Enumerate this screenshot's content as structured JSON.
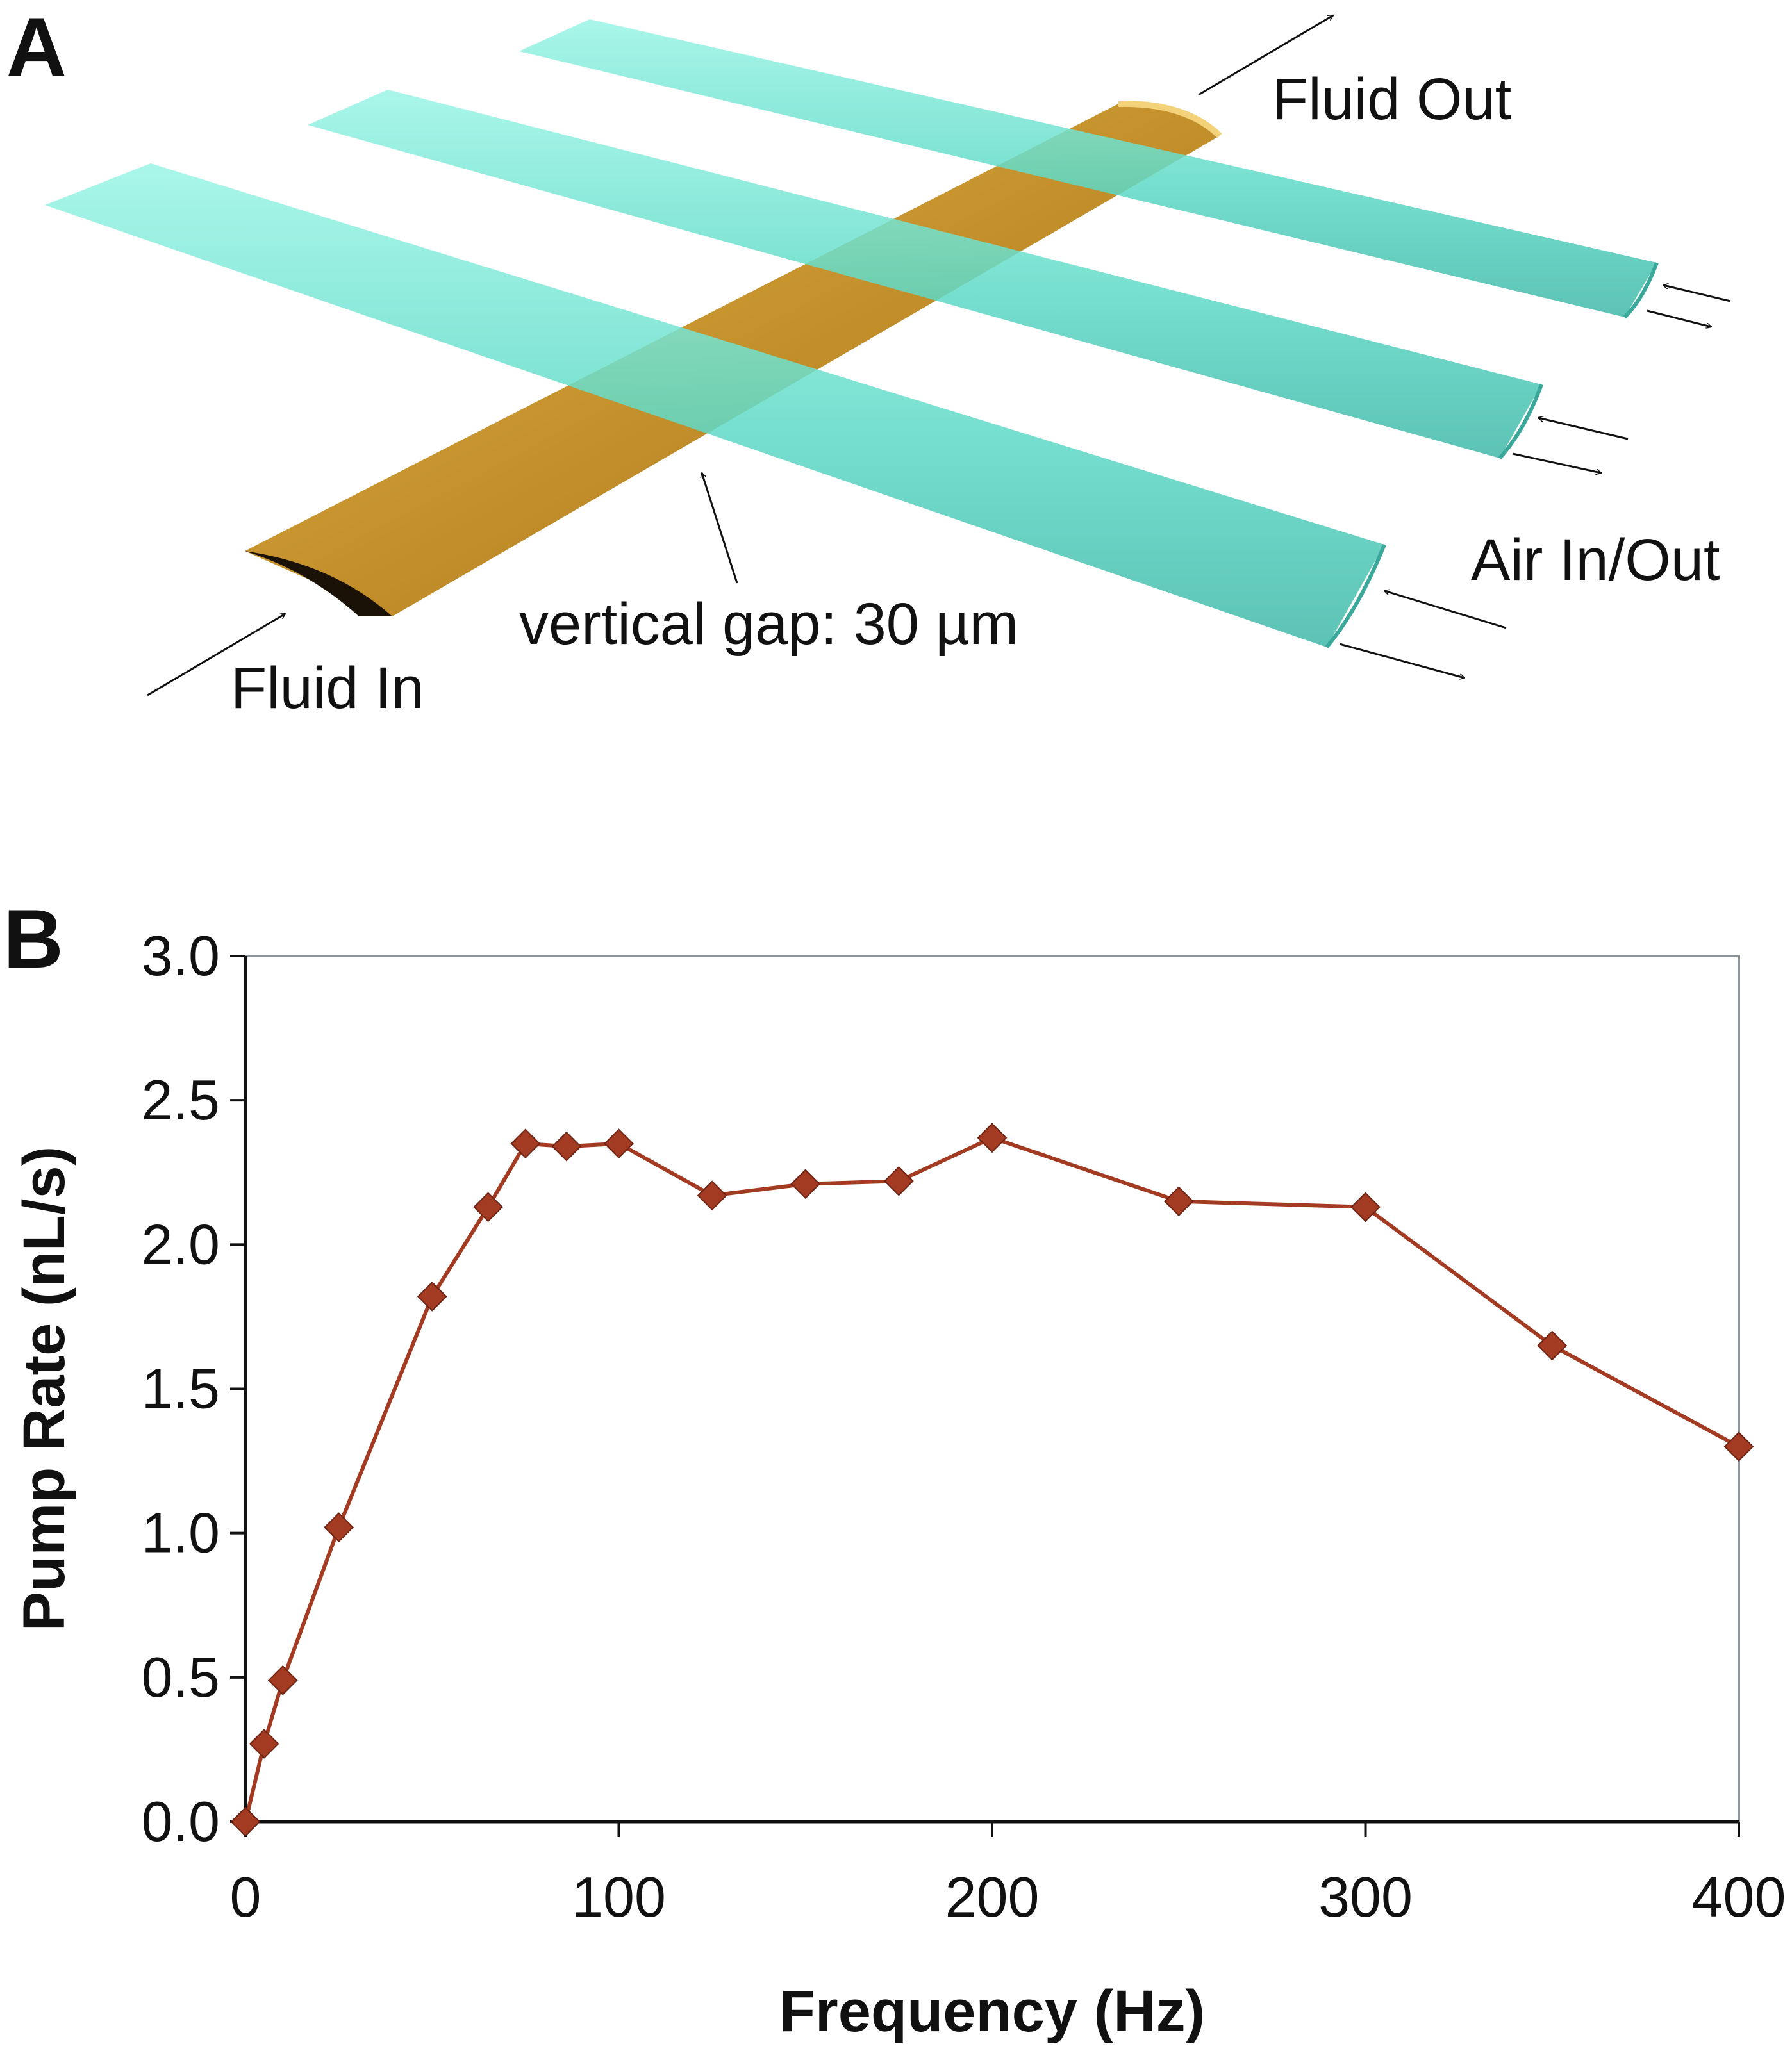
{
  "panel_a": {
    "panel_label": "A",
    "labels": {
      "fluid_out": "Fluid Out",
      "fluid_in": "Fluid In",
      "air_in_out": "Air In/Out",
      "vertical_gap": "vertical gap: 30 µm"
    },
    "colors": {
      "fluid_channel": "#c9962f",
      "air_channel": "#6fe0cf"
    },
    "air_channel_count": 3
  },
  "panel_b": {
    "panel_label": "B"
  },
  "chart_data": {
    "type": "line",
    "title": "",
    "xlabel": "Frequency (Hz)",
    "ylabel": "Pump Rate (nL/s)",
    "xlim": [
      0,
      400
    ],
    "ylim": [
      0.0,
      3.0
    ],
    "xticks": [
      "0",
      "100",
      "200",
      "300",
      "400"
    ],
    "yticks": [
      "0.0",
      "0.5",
      "1.0",
      "1.5",
      "2.0",
      "2.5",
      "3.0"
    ],
    "grid": false,
    "legend": "none",
    "series": [
      {
        "marker": "diamond",
        "color": "#a33a22",
        "x": [
          0,
          5,
          10,
          25,
          50,
          65,
          75,
          86,
          100,
          125,
          150,
          175,
          200,
          250,
          300,
          350,
          400
        ],
        "y": [
          0.0,
          0.27,
          0.49,
          1.02,
          1.82,
          2.13,
          2.35,
          2.34,
          2.35,
          2.17,
          2.21,
          2.22,
          2.37,
          2.15,
          2.13,
          1.65,
          1.3
        ]
      }
    ]
  }
}
